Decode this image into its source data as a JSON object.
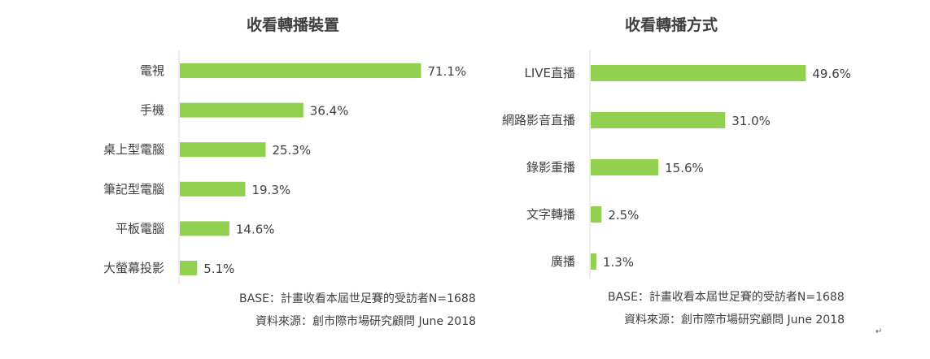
{
  "chart_data": [
    {
      "type": "bar",
      "orientation": "horizontal",
      "title": "收看轉播裝置",
      "categories": [
        "電視",
        "手機",
        "桌上型電腦",
        "筆記型電腦",
        "平板電腦",
        "大螢幕投影"
      ],
      "values": [
        71.1,
        36.4,
        25.3,
        19.3,
        14.6,
        5.1
      ],
      "value_labels": [
        "71.1%",
        "36.4%",
        "25.3%",
        "19.3%",
        "14.6%",
        "5.1%"
      ],
      "unit": "%",
      "xlim": [
        0,
        100
      ],
      "grid": false,
      "legend": "none",
      "bar_color": "#92D050",
      "axis_color": "#D9D9D9",
      "footnotes": [
        "BASE：計畫收看本屆世足賽的受訪者N=1688",
        "資料來源：創市際市場研究顧問 June 2018"
      ]
    },
    {
      "type": "bar",
      "orientation": "horizontal",
      "title": "收看轉播方式",
      "categories": [
        "LIVE直播",
        "網路影音直播",
        "錄影重播",
        "文字轉播",
        "廣播"
      ],
      "values": [
        49.6,
        31.0,
        15.6,
        2.5,
        1.3
      ],
      "value_labels": [
        "49.6%",
        "31.0%",
        "15.6%",
        "2.5%",
        "1.3%"
      ],
      "unit": "%",
      "xlim": [
        0,
        100
      ],
      "grid": false,
      "legend": "none",
      "bar_color": "#92D050",
      "axis_color": "#D9D9D9",
      "footnotes": [
        "BASE：計畫收看本屆世足賽的受訪者N=1688",
        "資料來源：創市際市場研究顧問 June 2018"
      ]
    }
  ],
  "paragraph_mark": "↵"
}
